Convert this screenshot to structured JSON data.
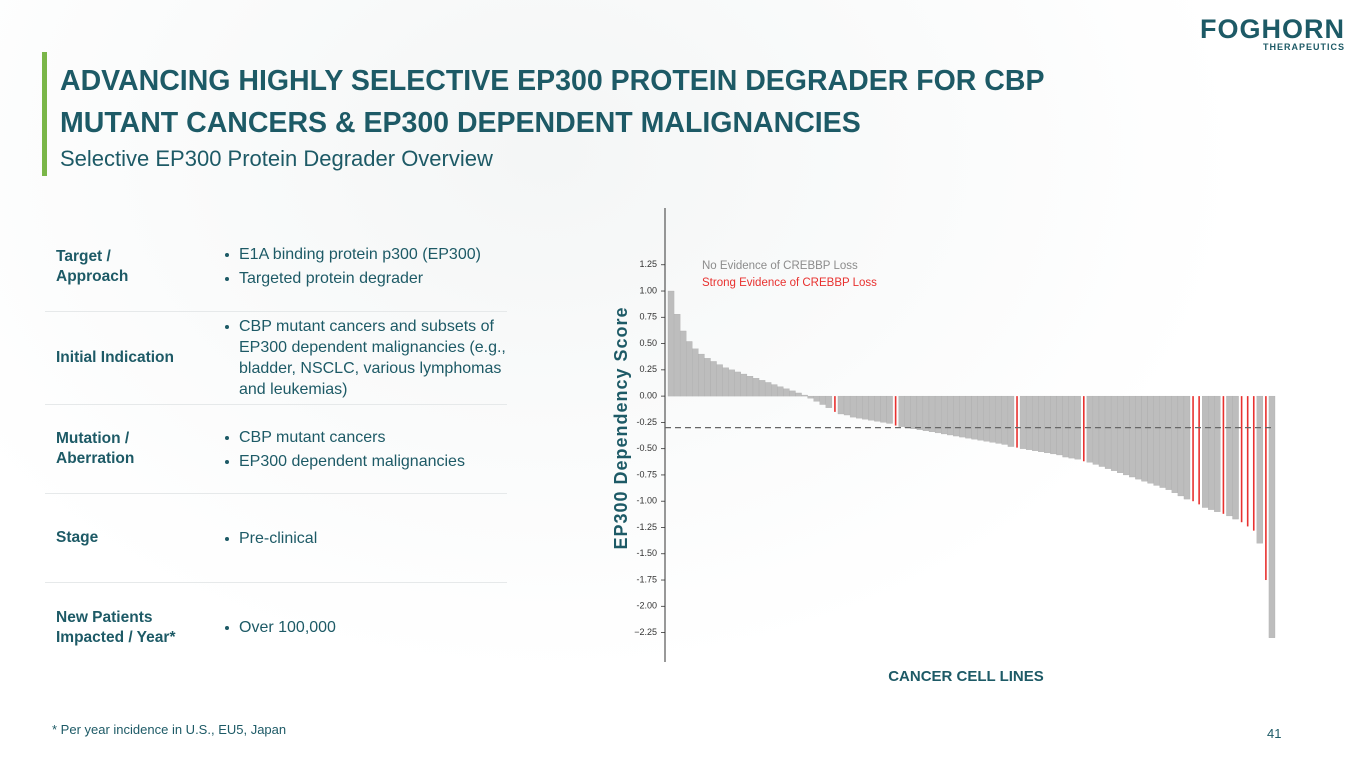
{
  "logo": {
    "name": "FOGHORN",
    "sub": "THERAPEUTICS"
  },
  "header": {
    "title_lines": [
      "ADVANCING HIGHLY SELECTIVE EP300 PROTEIN DEGRADER FOR CBP",
      "MUTANT CANCERS & EP300 DEPENDENT MALIGNANCIES"
    ],
    "subtitle": "Selective EP300 Protein Degrader Overview"
  },
  "table": {
    "rows": [
      {
        "label": [
          "Target /",
          "Approach"
        ],
        "items": [
          "E1A binding protein p300 (EP300)",
          "Targeted protein degrader"
        ]
      },
      {
        "label": [
          "Initial Indication"
        ],
        "items": [
          "CBP mutant cancers and subsets of EP300 dependent malignancies (e.g., bladder, NSCLC, various lymphomas and leukemias)"
        ]
      },
      {
        "label": [
          "Mutation /",
          "Aberration"
        ],
        "items": [
          "CBP mutant cancers",
          "EP300 dependent malignancies"
        ]
      },
      {
        "label": [
          "Stage"
        ],
        "items": [
          "Pre-clinical"
        ]
      },
      {
        "label": [
          "New Patients",
          "Impacted / Year*"
        ],
        "items": [
          "Over 100,000"
        ]
      }
    ]
  },
  "footnote": "* Per year incidence in U.S., EU5, Japan",
  "page_number": "41",
  "chart_data": {
    "type": "bar",
    "x_label": "CANCER CELL LINES",
    "y_label": "EP300 Dependency Score",
    "ylim": [
      -2.53,
      1.79
    ],
    "yticks": [
      {
        "value": 1.25,
        "label": "1.25"
      },
      {
        "value": 1.0,
        "label": "1.00"
      },
      0.75,
      {
        "value": 0.5,
        "label": "0.50"
      },
      0.25,
      {
        "value": 0,
        "label": "0.00"
      },
      -0.25,
      {
        "value": -0.5,
        "label": "-0.50"
      },
      -0.75,
      {
        "value": -1.0,
        "label": "-1.00"
      },
      -1.25,
      {
        "value": -1.5,
        "label": "-1.50"
      },
      -1.75,
      {
        "value": -2.0,
        "label": "-2.00"
      },
      {
        "value": -2.25,
        "label": "−2.25"
      }
    ],
    "reference_line": -0.3,
    "legend": "top-left",
    "series": [
      {
        "name": "No Evidence of CREBBP Loss",
        "color": "#bdbdbd",
        "values": [
          1.0,
          0.78,
          0.62,
          0.52,
          0.45,
          0.4,
          0.36,
          0.33,
          0.3,
          0.27,
          0.25,
          0.23,
          0.21,
          0.19,
          0.17,
          0.15,
          0.13,
          0.11,
          0.09,
          0.07,
          0.05,
          0.03,
          0.01,
          -0.02,
          -0.05,
          -0.08,
          -0.11,
          null,
          -0.17,
          -0.18,
          -0.2,
          -0.21,
          -0.22,
          -0.23,
          -0.24,
          -0.25,
          -0.26,
          null,
          -0.29,
          -0.3,
          -0.31,
          -0.32,
          -0.33,
          -0.34,
          -0.35,
          -0.36,
          -0.37,
          -0.38,
          -0.39,
          -0.4,
          -0.41,
          -0.42,
          -0.43,
          -0.44,
          -0.45,
          -0.46,
          -0.48,
          null,
          -0.5,
          -0.51,
          -0.52,
          -0.53,
          -0.54,
          -0.55,
          -0.56,
          -0.58,
          -0.59,
          -0.6,
          null,
          -0.63,
          -0.65,
          -0.67,
          -0.69,
          -0.71,
          -0.73,
          -0.75,
          -0.77,
          -0.79,
          -0.81,
          -0.83,
          -0.85,
          -0.87,
          -0.89,
          -0.92,
          -0.95,
          -0.98,
          null,
          null,
          -1.06,
          -1.08,
          -1.1,
          null,
          -1.14,
          -1.17,
          null,
          null,
          null,
          -1.4,
          null,
          -2.3
        ]
      },
      {
        "name": "Strong Evidence of CREBBP Loss",
        "color": "#e8312f",
        "values": [
          null,
          null,
          null,
          null,
          null,
          null,
          null,
          null,
          null,
          null,
          null,
          null,
          null,
          null,
          null,
          null,
          null,
          null,
          null,
          null,
          null,
          null,
          null,
          null,
          null,
          null,
          null,
          -0.15,
          null,
          null,
          null,
          null,
          null,
          null,
          null,
          null,
          null,
          -0.28,
          null,
          null,
          null,
          null,
          null,
          null,
          null,
          null,
          null,
          null,
          null,
          null,
          null,
          null,
          null,
          null,
          null,
          null,
          null,
          -0.49,
          null,
          null,
          null,
          null,
          null,
          null,
          null,
          null,
          null,
          null,
          -0.62,
          null,
          null,
          null,
          null,
          null,
          null,
          null,
          null,
          null,
          null,
          null,
          null,
          null,
          null,
          null,
          null,
          null,
          -1.0,
          -1.03,
          null,
          null,
          null,
          -1.12,
          null,
          null,
          -1.2,
          -1.24,
          -1.28,
          null,
          -1.75,
          null
        ]
      }
    ]
  }
}
